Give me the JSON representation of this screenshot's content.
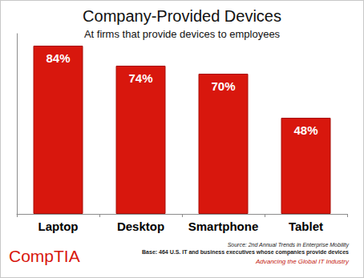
{
  "chart_data": {
    "type": "bar",
    "title": "Company-Provided Devices",
    "subtitle": "At firms that provide devices to employees",
    "categories": [
      "Laptop",
      "Desktop",
      "Smartphone",
      "Tablet"
    ],
    "values": [
      84,
      74,
      70,
      48
    ],
    "value_labels": [
      "84%",
      "74%",
      "70%",
      "48%"
    ],
    "color": "#d8170d",
    "ylim": [
      0,
      90
    ],
    "grid": false,
    "data_labels": true,
    "tick_labels": "x",
    "source": "Source: 2nd Annual Trends in Enterprise Mobility",
    "base_note": "Base: 464 U.S. IT and business executives whose companies provide devices",
    "logo": "CompTIA",
    "tagline": "Advancing the Global IT Industry"
  }
}
